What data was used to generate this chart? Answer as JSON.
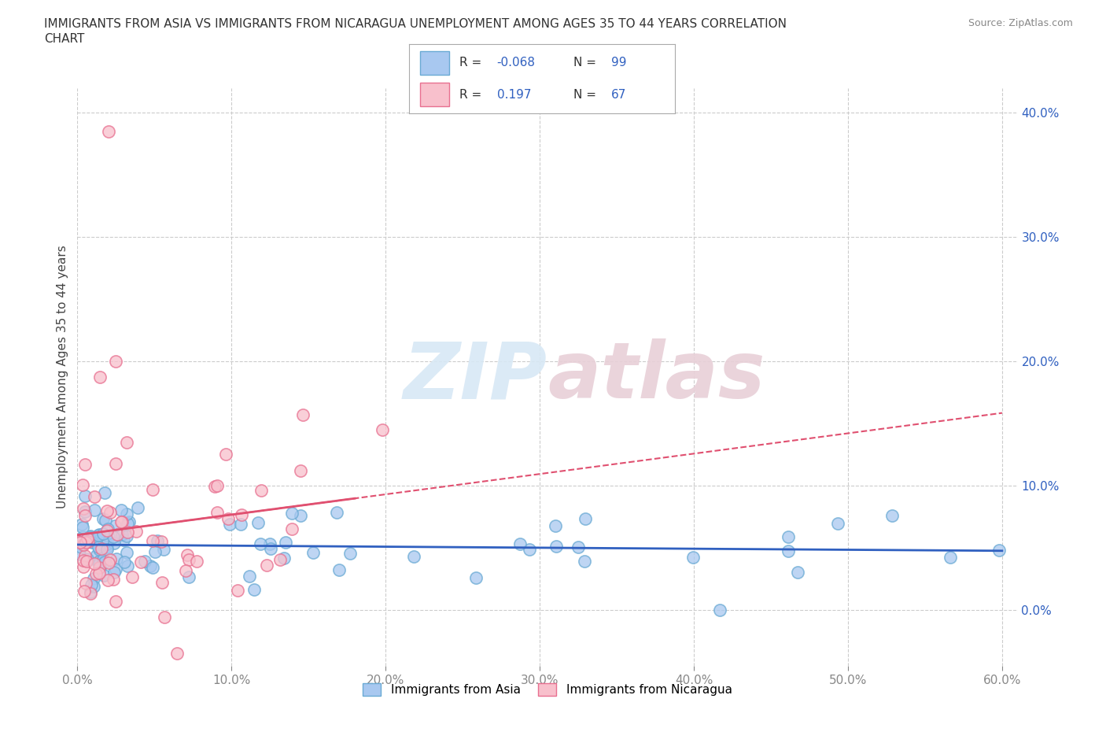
{
  "title_line1": "IMMIGRANTS FROM ASIA VS IMMIGRANTS FROM NICARAGUA UNEMPLOYMENT AMONG AGES 35 TO 44 YEARS CORRELATION",
  "title_line2": "CHART",
  "source_text": "Source: ZipAtlas.com",
  "ylabel": "Unemployment Among Ages 35 to 44 years",
  "xlim": [
    0.0,
    0.61
  ],
  "ylim": [
    -0.045,
    0.42
  ],
  "xticks": [
    0.0,
    0.1,
    0.2,
    0.3,
    0.4,
    0.5,
    0.6
  ],
  "xticklabels": [
    "0.0%",
    "10.0%",
    "20.0%",
    "30.0%",
    "40.0%",
    "50.0%",
    "60.0%"
  ],
  "yticks": [
    0.0,
    0.1,
    0.2,
    0.3,
    0.4
  ],
  "yticklabels": [
    "0.0%",
    "10.0%",
    "20.0%",
    "30.0%",
    "40.0%"
  ],
  "asia_fill_color": "#a8c8f0",
  "asia_edge_color": "#6aaad4",
  "nicaragua_fill_color": "#f8c0cc",
  "nicaragua_edge_color": "#e87090",
  "asia_R": -0.068,
  "asia_N": 99,
  "nicaragua_R": 0.197,
  "nicaragua_N": 67,
  "asia_line_color": "#3060c0",
  "nicaragua_line_color": "#e05070",
  "grid_color": "#cccccc",
  "watermark_color": "#d8e8f5",
  "watermark_color2": "#e8d0d8"
}
